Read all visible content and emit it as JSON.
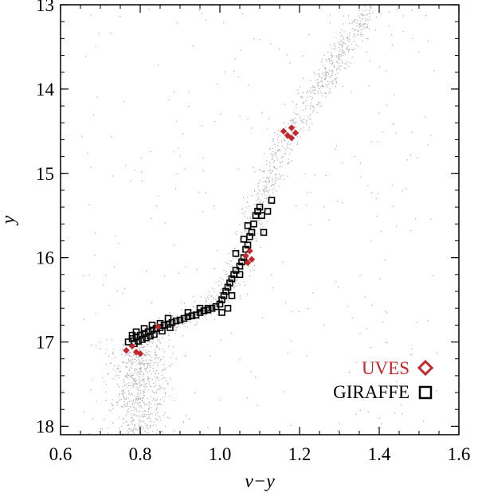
{
  "chart_data": {
    "type": "scatter",
    "xlabel": "v−y",
    "ylabel": "y",
    "xlim": [
      0.6,
      1.6
    ],
    "ylim": [
      18.1,
      13.0
    ],
    "y_inverted": true,
    "x_ticks": [
      "0.6",
      "0.8",
      "1.0",
      "1.2",
      "1.4",
      "1.6"
    ],
    "y_ticks": [
      "13",
      "14",
      "15",
      "16",
      "17",
      "18"
    ],
    "legend_position": "bottom-right",
    "series": [
      {
        "name": "",
        "marker": "dot",
        "color": "#b0b0b0",
        "description_count_approx": 2000,
        "sequence_shape": [
          {
            "x": 0.78,
            "y": 17.9
          },
          {
            "x": 0.8,
            "y": 17.3
          },
          {
            "x": 0.8,
            "y": 17.0
          },
          {
            "x": 0.9,
            "y": 16.75
          },
          {
            "x": 1.0,
            "y": 16.55
          },
          {
            "x": 1.04,
            "y": 16.2
          },
          {
            "x": 1.08,
            "y": 15.6
          },
          {
            "x": 1.12,
            "y": 15.1
          },
          {
            "x": 1.17,
            "y": 14.6
          },
          {
            "x": 1.25,
            "y": 14.0
          },
          {
            "x": 1.3,
            "y": 13.6
          },
          {
            "x": 1.38,
            "y": 13.0
          }
        ]
      },
      {
        "name": "UVES",
        "marker": "diamond",
        "color": "#c0282c",
        "points": [
          {
            "x": 0.765,
            "y": 17.1
          },
          {
            "x": 0.78,
            "y": 17.05
          },
          {
            "x": 0.79,
            "y": 17.12
          },
          {
            "x": 0.8,
            "y": 17.14
          },
          {
            "x": 0.845,
            "y": 16.82
          },
          {
            "x": 1.065,
            "y": 15.98
          },
          {
            "x": 1.07,
            "y": 16.06
          },
          {
            "x": 1.075,
            "y": 15.92
          },
          {
            "x": 1.08,
            "y": 16.02
          },
          {
            "x": 1.16,
            "y": 14.5
          },
          {
            "x": 1.17,
            "y": 14.55
          },
          {
            "x": 1.18,
            "y": 14.46
          },
          {
            "x": 1.18,
            "y": 14.58
          },
          {
            "x": 1.19,
            "y": 14.52
          }
        ]
      },
      {
        "name": "GIRAFFE",
        "marker": "square",
        "color": "#000000",
        "points": [
          {
            "x": 0.77,
            "y": 17.0
          },
          {
            "x": 0.78,
            "y": 16.96
          },
          {
            "x": 0.785,
            "y": 17.02
          },
          {
            "x": 0.79,
            "y": 16.94
          },
          {
            "x": 0.795,
            "y": 16.99
          },
          {
            "x": 0.8,
            "y": 16.92
          },
          {
            "x": 0.805,
            "y": 16.97
          },
          {
            "x": 0.81,
            "y": 16.9
          },
          {
            "x": 0.815,
            "y": 16.95
          },
          {
            "x": 0.82,
            "y": 16.88
          },
          {
            "x": 0.825,
            "y": 16.93
          },
          {
            "x": 0.83,
            "y": 16.86
          },
          {
            "x": 0.835,
            "y": 16.91
          },
          {
            "x": 0.84,
            "y": 16.84
          },
          {
            "x": 0.85,
            "y": 16.83
          },
          {
            "x": 0.855,
            "y": 16.87
          },
          {
            "x": 0.86,
            "y": 16.8
          },
          {
            "x": 0.87,
            "y": 16.79
          },
          {
            "x": 0.875,
            "y": 16.83
          },
          {
            "x": 0.88,
            "y": 16.77
          },
          {
            "x": 0.89,
            "y": 16.75
          },
          {
            "x": 0.9,
            "y": 16.74
          },
          {
            "x": 0.91,
            "y": 16.72
          },
          {
            "x": 0.92,
            "y": 16.7
          },
          {
            "x": 0.93,
            "y": 16.69
          },
          {
            "x": 0.94,
            "y": 16.68
          },
          {
            "x": 0.95,
            "y": 16.65
          },
          {
            "x": 0.96,
            "y": 16.63
          },
          {
            "x": 0.97,
            "y": 16.62
          },
          {
            "x": 0.98,
            "y": 16.6
          },
          {
            "x": 0.99,
            "y": 16.58
          },
          {
            "x": 1.0,
            "y": 16.55
          },
          {
            "x": 1.005,
            "y": 16.5
          },
          {
            "x": 1.01,
            "y": 16.45
          },
          {
            "x": 1.015,
            "y": 16.4
          },
          {
            "x": 1.02,
            "y": 16.35
          },
          {
            "x": 1.025,
            "y": 16.3
          },
          {
            "x": 1.03,
            "y": 16.25
          },
          {
            "x": 1.035,
            "y": 16.2
          },
          {
            "x": 1.04,
            "y": 16.15
          },
          {
            "x": 1.05,
            "y": 16.1
          },
          {
            "x": 1.055,
            "y": 16.05
          },
          {
            "x": 1.06,
            "y": 16.0
          },
          {
            "x": 1.065,
            "y": 15.9
          },
          {
            "x": 1.07,
            "y": 15.85
          },
          {
            "x": 1.075,
            "y": 15.75
          },
          {
            "x": 1.08,
            "y": 15.7
          },
          {
            "x": 1.085,
            "y": 15.6
          },
          {
            "x": 1.09,
            "y": 15.5
          },
          {
            "x": 1.095,
            "y": 15.45
          },
          {
            "x": 1.1,
            "y": 15.4
          },
          {
            "x": 1.105,
            "y": 15.5
          },
          {
            "x": 1.11,
            "y": 15.7
          },
          {
            "x": 1.12,
            "y": 15.45
          },
          {
            "x": 1.13,
            "y": 15.32
          },
          {
            "x": 1.06,
            "y": 15.78
          },
          {
            "x": 1.07,
            "y": 15.62
          },
          {
            "x": 1.04,
            "y": 15.95
          },
          {
            "x": 1.05,
            "y": 16.2
          },
          {
            "x": 1.03,
            "y": 16.45
          },
          {
            "x": 1.02,
            "y": 16.6
          },
          {
            "x": 1.005,
            "y": 16.65
          },
          {
            "x": 0.97,
            "y": 16.6
          },
          {
            "x": 0.95,
            "y": 16.6
          },
          {
            "x": 0.92,
            "y": 16.65
          },
          {
            "x": 0.87,
            "y": 16.72
          },
          {
            "x": 0.85,
            "y": 16.78
          },
          {
            "x": 0.83,
            "y": 16.8
          },
          {
            "x": 0.81,
            "y": 16.84
          },
          {
            "x": 0.79,
            "y": 16.88
          },
          {
            "x": 0.78,
            "y": 16.92
          }
        ]
      }
    ]
  }
}
